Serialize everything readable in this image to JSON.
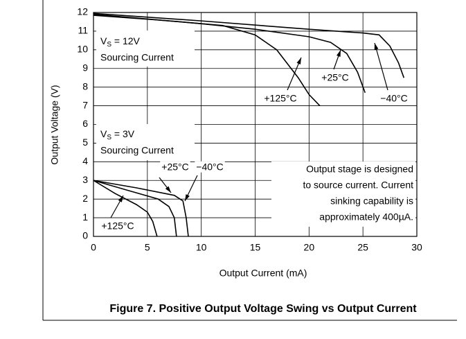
{
  "chart_data": {
    "type": "line",
    "xlabel": "Output Current (mA)",
    "ylabel": "Output Voltage (V)",
    "caption": "Figure 7. Positive Output Voltage Swing vs Output Current",
    "xlim": [
      0,
      30
    ],
    "xticks": [
      0,
      5,
      10,
      15,
      20,
      25,
      30
    ],
    "ylim": [
      0,
      12
    ],
    "yticks": [
      0,
      1,
      2,
      3,
      4,
      5,
      6,
      7,
      8,
      9,
      10,
      11,
      12
    ],
    "grid": true,
    "annotations": {
      "vs12": {
        "v": "V",
        "sub": "S",
        "rest": " = 12V",
        "line2": "Sourcing Current"
      },
      "vs3": {
        "v": "V",
        "sub": "S",
        "rest": " = 3V",
        "line2": "Sourcing Current"
      },
      "note": [
        "Output stage is designed",
        "to source current. Current",
        "sinking capability is",
        "approximately 400µA."
      ]
    },
    "series": [
      {
        "name": "+125°C",
        "color": "#000000",
        "x": [
          0,
          6,
          12,
          15,
          17,
          19,
          20,
          21
        ],
        "values": [
          11.85,
          11.6,
          11.3,
          10.8,
          10.0,
          8.5,
          7.6,
          7.0
        ]
      },
      {
        "name": "+25°C",
        "color": "#000000",
        "x": [
          0,
          10,
          15,
          20,
          22,
          23.5,
          24.5,
          25.2
        ],
        "values": [
          11.9,
          11.4,
          11.1,
          10.7,
          10.4,
          9.8,
          8.8,
          7.7
        ]
      },
      {
        "name": "−40°C",
        "color": "#000000",
        "x": [
          0,
          10,
          20,
          25,
          26.5,
          27.5,
          28.3,
          28.8
        ],
        "values": [
          11.95,
          11.55,
          11.1,
          10.9,
          10.8,
          10.2,
          9.3,
          8.5
        ]
      },
      {
        "name": "+125°C",
        "color": "#000000",
        "x": [
          0,
          2,
          4,
          5,
          5.5,
          5.9
        ],
        "values": [
          3.0,
          2.3,
          1.7,
          1.3,
          0.8,
          0
        ]
      },
      {
        "name": "+25°C",
        "color": "#000000",
        "x": [
          0,
          3,
          6,
          7,
          7.5,
          7.7
        ],
        "values": [
          3.0,
          2.5,
          2.0,
          1.6,
          1.0,
          0
        ]
      },
      {
        "name": "−40°C",
        "color": "#000000",
        "x": [
          0,
          4,
          7.5,
          8.3,
          8.6,
          8.8
        ],
        "values": [
          3.0,
          2.6,
          2.2,
          1.9,
          1.0,
          0
        ]
      }
    ]
  }
}
